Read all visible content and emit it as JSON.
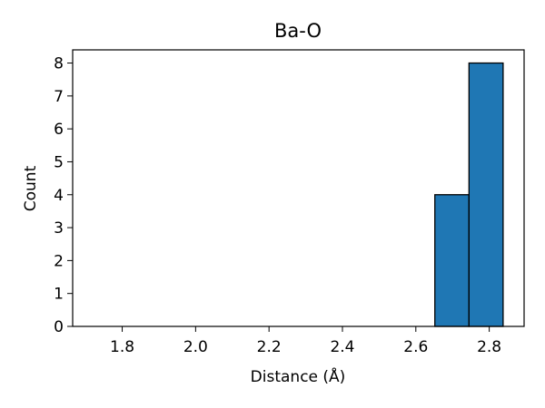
{
  "chart_data": {
    "type": "bar",
    "title": "Ba-O",
    "xlabel": "Distance (Å)",
    "ylabel": "Count",
    "xlim": [
      1.665,
      2.895
    ],
    "ylim": [
      0,
      8.4
    ],
    "x_ticks": [
      "1.8",
      "2.0",
      "2.2",
      "2.4",
      "2.6",
      "2.8"
    ],
    "y_ticks": [
      "0",
      "1",
      "2",
      "3",
      "4",
      "5",
      "6",
      "7",
      "8"
    ],
    "bins": [
      {
        "x0": 1.7218,
        "x1": 1.8148,
        "count": 0
      },
      {
        "x0": 1.8148,
        "x1": 1.9078,
        "count": 0
      },
      {
        "x0": 1.9078,
        "x1": 2.0008,
        "count": 0
      },
      {
        "x0": 2.0008,
        "x1": 2.0938,
        "count": 0
      },
      {
        "x0": 2.0938,
        "x1": 2.1868,
        "count": 0
      },
      {
        "x0": 2.1868,
        "x1": 2.2798,
        "count": 0
      },
      {
        "x0": 2.2798,
        "x1": 2.3728,
        "count": 0
      },
      {
        "x0": 2.3728,
        "x1": 2.4658,
        "count": 0
      },
      {
        "x0": 2.4658,
        "x1": 2.5588,
        "count": 0
      },
      {
        "x0": 2.5588,
        "x1": 2.6518,
        "count": 0
      },
      {
        "x0": 2.6518,
        "x1": 2.7448,
        "count": 4
      },
      {
        "x0": 2.7448,
        "x1": 2.8378,
        "count": 8
      }
    ],
    "bar_color": "#1f77b4",
    "edge_color": "#000000",
    "grid": false,
    "legend": "none"
  }
}
